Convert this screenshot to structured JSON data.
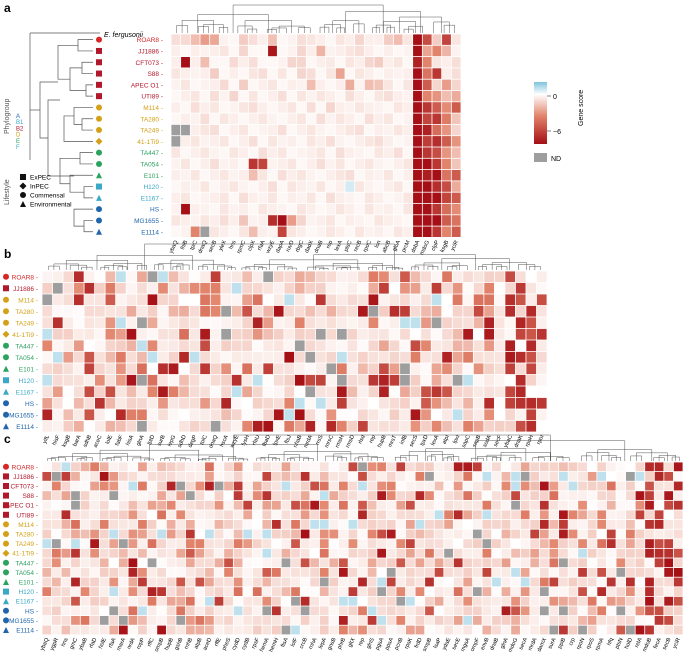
{
  "colors": {
    "low": "#a50f15",
    "mid": "#ffffff",
    "high": "#7fc3dd",
    "nd": "#9e9e9e",
    "ExPEC": "#b2182b",
    "B1": "#2166ac",
    "B2": "#b2182b",
    "D": "#d4a017",
    "E": "#2ca25f",
    "F": "#3aa8c6",
    "tree": "#555555"
  },
  "outgroup": "E. fergusonii",
  "strains": [
    {
      "name": "ROAR8",
      "color": "#d62728",
      "shape": "circle"
    },
    {
      "name": "JJ1886",
      "color": "#b2182b",
      "shape": "square"
    },
    {
      "name": "CFT073",
      "color": "#b2182b",
      "shape": "square"
    },
    {
      "name": "S88",
      "color": "#b2182b",
      "shape": "square"
    },
    {
      "name": "APEC O1",
      "color": "#b2182b",
      "shape": "square"
    },
    {
      "name": "UTI89",
      "color": "#b2182b",
      "shape": "square"
    },
    {
      "name": "M114",
      "color": "#d4a017",
      "shape": "circle"
    },
    {
      "name": "TA280",
      "color": "#d4a017",
      "shape": "circle"
    },
    {
      "name": "TA249",
      "color": "#d4a017",
      "shape": "circle"
    },
    {
      "name": "41-1Ti9",
      "color": "#d4a017",
      "shape": "diamond"
    },
    {
      "name": "TA447",
      "color": "#2ca25f",
      "shape": "circle"
    },
    {
      "name": "TA054",
      "color": "#2ca25f",
      "shape": "circle"
    },
    {
      "name": "E101",
      "color": "#2ca25f",
      "shape": "triangle"
    },
    {
      "name": "H120",
      "color": "#3aa8c6",
      "shape": "square"
    },
    {
      "name": "E1167",
      "color": "#3aa8c6",
      "shape": "triangle"
    },
    {
      "name": "HS",
      "color": "#2166ac",
      "shape": "circle"
    },
    {
      "name": "MG1655",
      "color": "#2166ac",
      "shape": "circle"
    },
    {
      "name": "E1114",
      "color": "#2166ac",
      "shape": "triangle"
    }
  ],
  "phylogroup": {
    "title": "Phylogroup",
    "items": [
      {
        "label": "A",
        "color": "#2166ac"
      },
      {
        "label": "B1",
        "color": "#3aa8c6"
      },
      {
        "label": "B2",
        "color": "#b2182b"
      },
      {
        "label": "D",
        "color": "#d4a017"
      },
      {
        "label": "E",
        "color": "#2ca25f"
      },
      {
        "label": "F",
        "color": "#3aa8c6"
      }
    ]
  },
  "lifestyle": {
    "title": "Lifestyle",
    "items": [
      {
        "label": "ExPEC",
        "shape": "square"
      },
      {
        "label": "InPEC",
        "shape": "diamond"
      },
      {
        "label": "Commensal",
        "shape": "circle"
      },
      {
        "label": "Environmental",
        "shape": "triangle"
      }
    ]
  },
  "colorbar": {
    "title": "Gene score",
    "ticks": [
      "0",
      "−6"
    ],
    "nd_label": "ND"
  },
  "chart_data": [
    {
      "panel": "a",
      "type": "heatmap",
      "rows": [
        "ROAR8",
        "JJ1886",
        "CFT073",
        "S88",
        "APEC O1",
        "UTI89",
        "M114",
        "TA280",
        "TA249",
        "41-1Ti9",
        "TA447",
        "TA054",
        "E101",
        "H120",
        "E1167",
        "HS",
        "MG1655",
        "E1114"
      ],
      "genes": [
        "ybaQ",
        "lhlB",
        "tpiC",
        "dnaQ",
        "secB",
        "yleX",
        "hns",
        "rpmC",
        "clpX",
        "rfaA",
        "wzyE",
        "dapA",
        "ruvD",
        "rbgC",
        "dadX",
        "dnaB",
        "rep",
        "lexA",
        "ptsC",
        "recB",
        "rpoC",
        "lon",
        "abcB",
        "gloA",
        "prcM",
        "dsbA",
        "mdoG",
        "clpP",
        "ksgB",
        "yciR"
      ],
      "scale": {
        "min": -6,
        "max": 0.5,
        "nd": "ND"
      },
      "values": [
        [
          -0.8,
          -0.9,
          -1.6,
          -2.4,
          -2.1,
          -0.3,
          -0.2,
          -1.2,
          -0.8,
          -0.4,
          -1.5,
          -0.2,
          -0.3,
          -0.8,
          -0.6,
          -0.4,
          -0.2,
          -0.6,
          -0.4,
          -1.0,
          -0.4,
          -0.4,
          -1.2,
          -1.6,
          -0.6,
          -6,
          -4.4,
          -1.2,
          -4.6,
          -0.6
        ],
        [
          -0.4,
          -0.2,
          -0.4,
          -0.3,
          -0.4,
          -0.6,
          -0.2,
          -1.0,
          -0.2,
          -0.2,
          -5.8,
          -0.2,
          -0.3,
          -1.0,
          -0.4,
          -1.8,
          -0.3,
          -0.4,
          -0.6,
          -0.8,
          -0.4,
          -0.2,
          -0.4,
          -0.2,
          -0.3,
          -6,
          -2.2,
          -3.0,
          -1.8,
          -0.3
        ],
        [
          -0.4,
          -6,
          -0.4,
          -1.6,
          -0.2,
          -0.2,
          -0.9,
          -0.4,
          -0.8,
          -0.2,
          -0.2,
          -0.3,
          -1.0,
          -1.0,
          -0.2,
          -0.4,
          -0.5,
          -0.2,
          -0.6,
          -0.4,
          -1.0,
          -1.2,
          -0.4,
          -0.6,
          -0.2,
          -5.5,
          -3.0,
          -0.6,
          -0.4,
          -0.8
        ],
        [
          -0.6,
          -0.4,
          -0.3,
          -0.4,
          -1.2,
          -0.2,
          -0.4,
          -0.2,
          -0.6,
          -0.8,
          -0.2,
          -0.6,
          -0.2,
          -1.0,
          -0.8,
          -0.2,
          -0.6,
          -2.2,
          -0.2,
          -0.6,
          -0.4,
          -0.2,
          -0.4,
          -0.3,
          -0.4,
          -6,
          -3.4,
          -5.0,
          -0.4,
          -0.8
        ],
        [
          -0.3,
          -0.6,
          -0.2,
          -0.3,
          -0.4,
          -0.9,
          -0.2,
          -1.2,
          -0.2,
          -0.4,
          -0.6,
          -0.2,
          -0.4,
          -0.3,
          -1.6,
          -0.4,
          -0.2,
          -0.4,
          -2.0,
          -0.3,
          -1.6,
          -1.4,
          -0.6,
          -0.2,
          -0.6,
          -6,
          -4.0,
          -1.0,
          -2.4,
          -1.0
        ],
        [
          -0.2,
          -0.4,
          -0.6,
          -0.2,
          -0.8,
          -0.3,
          -1.0,
          -0.2,
          -0.6,
          -0.2,
          -0.4,
          -0.8,
          -0.2,
          -0.6,
          -0.3,
          -0.6,
          -0.4,
          -0.2,
          -0.8,
          -0.4,
          -0.2,
          -0.6,
          -0.8,
          -0.4,
          -0.3,
          -6,
          -3.0,
          -2.6,
          -1.6,
          -2.0
        ],
        [
          -0.4,
          -0.2,
          -0.8,
          -0.4,
          -0.6,
          -0.2,
          -0.3,
          -0.6,
          -0.8,
          -0.4,
          -0.2,
          -0.4,
          -0.6,
          -0.2,
          -0.8,
          -0.2,
          -1.0,
          -0.4,
          -0.3,
          -0.6,
          -0.4,
          -0.3,
          -0.2,
          -0.6,
          -0.4,
          -6,
          -5.0,
          -4.0,
          -2.8,
          -4.0
        ],
        [
          -0.2,
          -0.4,
          -0.3,
          -0.8,
          -0.2,
          -0.6,
          -0.4,
          -0.2,
          -0.4,
          -0.6,
          -0.3,
          -0.2,
          -0.4,
          -0.6,
          -0.2,
          -0.8,
          -0.3,
          -0.6,
          -0.4,
          -0.2,
          -0.8,
          -0.4,
          -0.6,
          -0.2,
          -0.3,
          -6,
          -4.6,
          -5.0,
          -3.2,
          -1.4
        ],
        [
          "ND",
          "ND",
          -0.4,
          -0.6,
          -0.8,
          -0.2,
          -0.4,
          -0.6,
          -0.2,
          -0.3,
          -0.4,
          -0.8,
          -0.2,
          -0.4,
          -0.6,
          -0.3,
          -0.2,
          -0.4,
          -0.6,
          -0.8,
          -0.2,
          -0.4,
          -0.3,
          -0.6,
          -0.4,
          -6,
          -5.5,
          -3.6,
          -2.6,
          -1.0
        ],
        [
          "ND",
          -0.4,
          -0.6,
          -0.3,
          -0.4,
          -0.6,
          -0.2,
          -0.4,
          -0.8,
          -0.2,
          -0.6,
          -0.3,
          -0.4,
          -0.2,
          -0.6,
          -0.4,
          -0.8,
          -0.3,
          -0.2,
          -0.4,
          -0.6,
          -0.8,
          -0.4,
          -0.2,
          -0.3,
          -6,
          -4.8,
          -5.2,
          -4.0,
          -2.6
        ],
        [
          -0.6,
          -0.2,
          -0.4,
          -0.6,
          -0.3,
          -0.2,
          -0.6,
          -0.4,
          -0.2,
          -0.8,
          -0.4,
          -0.6,
          -0.2,
          -0.3,
          -0.4,
          -0.6,
          -0.2,
          -0.8,
          -0.4,
          -0.3,
          -0.2,
          -0.6,
          -0.4,
          -0.8,
          -0.2,
          -6,
          -5.0,
          -4.4,
          -2.6,
          -1.6
        ],
        [
          -0.3,
          -0.6,
          -0.2,
          -0.4,
          -0.8,
          -0.3,
          -0.4,
          -0.2,
          -5.0,
          -4.6,
          -0.3,
          -0.4,
          -0.6,
          -0.2,
          -0.4,
          -0.8,
          -0.3,
          -0.6,
          -0.2,
          -0.4,
          -0.6,
          -0.3,
          -0.2,
          -0.4,
          -0.6,
          -6,
          -6,
          -5.0,
          -3.0,
          -1.4
        ],
        [
          -0.4,
          -0.3,
          -0.6,
          -0.2,
          -0.4,
          -0.6,
          -0.3,
          -0.4,
          -1.6,
          -0.6,
          -0.2,
          -0.8,
          -0.4,
          -0.6,
          -0.3,
          -0.2,
          -0.4,
          -0.6,
          -0.8,
          -0.2,
          -0.4,
          -0.3,
          -0.6,
          -0.2,
          -0.4,
          -6,
          -5.6,
          -6,
          -3.4,
          -4.0
        ],
        [
          -0.2,
          -0.4,
          -0.3,
          -0.6,
          -0.2,
          -0.4,
          -0.6,
          -0.3,
          -0.2,
          -0.4,
          -0.8,
          -0.2,
          -0.6,
          -0.4,
          -0.3,
          -0.6,
          -0.2,
          -0.4,
          0.2,
          -0.6,
          -0.3,
          -0.2,
          -0.4,
          -0.6,
          -0.2,
          -6,
          -6,
          -5.2,
          -4.4,
          -2.0
        ],
        [
          -0.4,
          -0.6,
          -0.2,
          -0.3,
          -0.4,
          -0.6,
          -0.2,
          -0.8,
          -0.4,
          -0.3,
          -0.6,
          -0.2,
          -0.4,
          -0.3,
          -0.6,
          -0.2,
          -0.8,
          -0.4,
          -0.3,
          -0.2,
          -0.6,
          -0.4,
          -0.2,
          -0.3,
          -0.6,
          -6,
          -6,
          -6,
          -4.6,
          -4.0
        ],
        [
          -0.3,
          -6,
          -0.4,
          -0.3,
          -0.2,
          -0.6,
          -0.3,
          -0.4,
          -0.2,
          -0.6,
          -0.4,
          -0.3,
          -0.2,
          -0.6,
          -0.4,
          -0.2,
          -0.3,
          -0.6,
          -0.4,
          -0.2,
          -0.6,
          -0.3,
          -0.4,
          -0.2,
          -0.6,
          -6,
          -6,
          -5.0,
          -3.6,
          -2.8
        ],
        [
          -0.6,
          -0.4,
          -0.3,
          -0.6,
          -0.4,
          -0.8,
          -0.4,
          -1.4,
          -0.3,
          -0.4,
          -5.2,
          -6,
          -2.4,
          -1.0,
          -0.3,
          -0.4,
          -0.6,
          -0.2,
          -0.4,
          -0.3,
          -0.2,
          -0.6,
          -0.4,
          -0.3,
          -0.2,
          -6,
          -6,
          -6,
          -4.0,
          -3.4
        ],
        [
          -0.2,
          -0.3,
          -3.0,
          "ND",
          -0.6,
          -0.4,
          -0.2,
          -0.6,
          -1.6,
          -0.4,
          -0.3,
          -4.6,
          -0.6,
          -0.4,
          -0.2,
          -0.3,
          -0.6,
          -0.4,
          -0.2,
          -0.6,
          -0.3,
          -0.4,
          -0.2,
          -0.6,
          -0.4,
          -6,
          -6,
          -5.0,
          -3.0,
          -4.0
        ]
      ]
    },
    {
      "panel": "b",
      "type": "heatmap",
      "rows": [
        "ROAR8",
        "JJ1886",
        "M114",
        "TA280",
        "TA249",
        "41-1Ti9",
        "TA447",
        "TA054",
        "E101",
        "H120",
        "E1167",
        "HS",
        "MG1655",
        "E1114"
      ],
      "genes": [
        "yifL",
        "hisF",
        "ksgB",
        "barA",
        "sdhB",
        "aceC",
        "lolE",
        "fabF",
        "hisA",
        "glnA",
        "lptD",
        "surB",
        "lepG",
        "sdhD",
        "degP",
        "tolC",
        "dnaQ",
        "hscA",
        "wzyE",
        "lysH",
        "rfaU",
        "fbaD",
        "lpxE",
        "ftsJ",
        "nhaB",
        "mrdA",
        "rrsS",
        "mrsC",
        "rmsH",
        "rmsD",
        "rlsd",
        "rep",
        "hupB",
        "mrsT",
        "infB",
        "secS",
        "lpxD",
        "lexA",
        "atpI",
        "lpxI",
        "sapC",
        "sapB",
        "sodA",
        "secF",
        "ybaC",
        "dnaK",
        "rpoH",
        "rpoI"
      ],
      "scale": {
        "min": -6,
        "max": 0.5,
        "nd": "ND"
      },
      "note": "values drawn as a color gradient; per-cell values not printed"
    },
    {
      "panel": "c",
      "type": "heatmap",
      "rows": [
        "ROAR8",
        "JJ1886",
        "CFT073",
        "S88",
        "APEC O1",
        "UTI89",
        "M114",
        "TA280",
        "TA249",
        "41-1Ti9",
        "TA447",
        "TA054",
        "E101",
        "H120",
        "E1167",
        "HS",
        "MG1655",
        "E1114"
      ],
      "genes": [
        "ybaQ",
        "ygpR",
        "hns",
        "gmC",
        "ybaB",
        "rfaD",
        "holE",
        "rfaA",
        "marA",
        "nrdA",
        "ropP",
        "rffC",
        "ompB",
        "hupB",
        "gshB",
        "rnhB",
        "atpB",
        "aceD",
        "rffE",
        "pheS",
        "cydD",
        "cydB",
        "rpsF",
        "hemA",
        "hemH",
        "ftsA",
        "lolF",
        "crcB",
        "rnhA",
        "lepA",
        "gnsB",
        "phrB",
        "gltX",
        "rep",
        "glnS",
        "pgsA",
        "ppsA",
        "pcnB",
        "rpsK",
        "frdD",
        "smpB",
        "lsaP",
        "ydaE",
        "secE",
        "mgsA",
        "ompF",
        "envB",
        "dnaB",
        "glnA",
        "mdoG",
        "secA",
        "mrdA",
        "damX",
        "surA",
        "ppiB",
        "crp",
        "rpoN",
        "rpoS",
        "rpmA",
        "hfq",
        "ptsN",
        "holD",
        "relA",
        "mdoB",
        "fecA",
        "secB",
        "yciR"
      ],
      "scale": {
        "min": -6,
        "max": 0.5,
        "nd": "ND"
      },
      "note": "values drawn as a color gradient; per-cell values not printed"
    }
  ]
}
